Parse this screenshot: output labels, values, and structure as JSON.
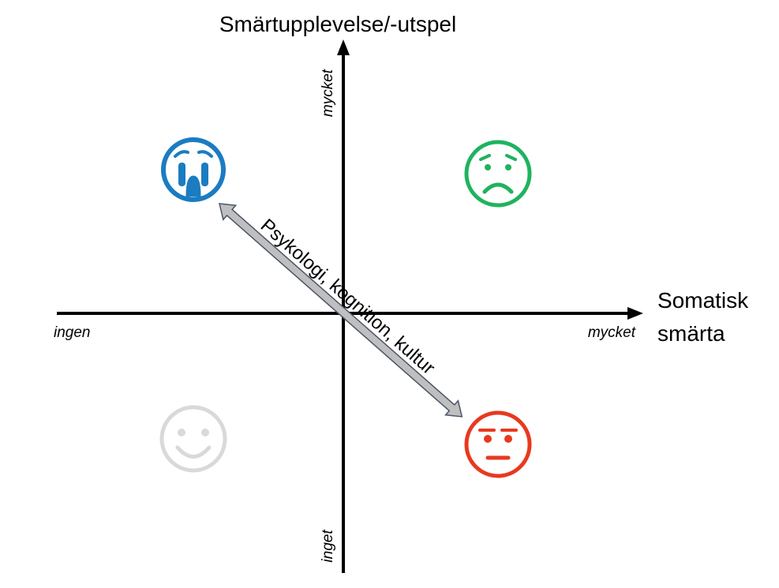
{
  "title": "Smärtupplevelse/-utspel",
  "x_axis": {
    "label_lines": [
      "Somatisk",
      "smärta"
    ],
    "low": "ingen",
    "high": "mycket"
  },
  "y_axis": {
    "low": "inget",
    "high": "mycket"
  },
  "diagonal_label": "Psykologi, kognition, kultur"
}
